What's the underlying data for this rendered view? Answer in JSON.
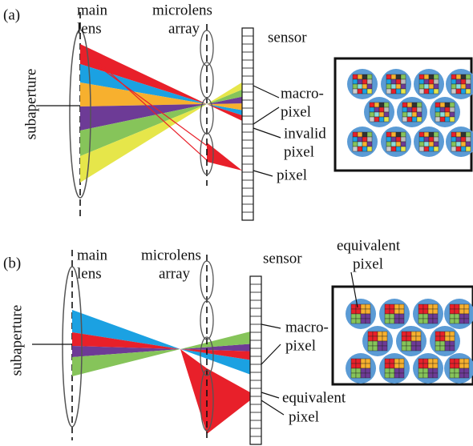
{
  "panels": [
    {
      "label": "(a)",
      "main_lens": [
        "main",
        "lens"
      ],
      "microlens_array": [
        "microlens",
        "array"
      ],
      "sensor": "sensor",
      "subaperture": "subaperture",
      "macro_pixel": [
        "macro-",
        "pixel"
      ],
      "invalid_pixel": [
        "invalid",
        "pixel"
      ],
      "pixel": "pixel"
    },
    {
      "label": "(b)",
      "main_lens": [
        "main",
        "lens"
      ],
      "microlens_array": [
        "microlens",
        "array"
      ],
      "sensor": "sensor",
      "subaperture": "subaperture",
      "inset_label": [
        "equivalent",
        "pixel"
      ],
      "macro_pixel": [
        "macro-",
        "pixel"
      ],
      "equivalent_pixel": [
        "equivalent",
        "pixel"
      ]
    }
  ]
}
